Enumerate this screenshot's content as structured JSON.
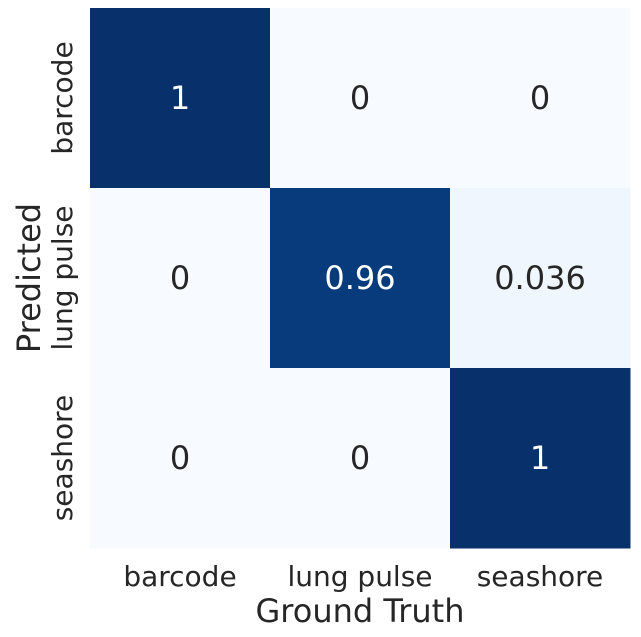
{
  "chart_data": {
    "type": "heatmap",
    "xlabel": "Ground Truth",
    "ylabel": "Predicted",
    "x_categories": [
      "barcode",
      "lung pulse",
      "seashore"
    ],
    "y_categories": [
      "barcode",
      "lung pulse",
      "seashore"
    ],
    "values": [
      [
        1,
        0,
        0
      ],
      [
        0,
        0.96,
        0.036
      ],
      [
        0,
        0,
        1
      ]
    ],
    "cell_labels": [
      [
        "1",
        "0",
        "0"
      ],
      [
        "0",
        "0.96",
        "0.036"
      ],
      [
        "0",
        "0",
        "1"
      ]
    ],
    "colormap": "Blues",
    "vmin": 0,
    "vmax": 1,
    "colors": {
      "low": "#f7fbff",
      "high": "#08306b",
      "text_on_dark": "#ffffff",
      "text_on_light": "#262626"
    }
  }
}
